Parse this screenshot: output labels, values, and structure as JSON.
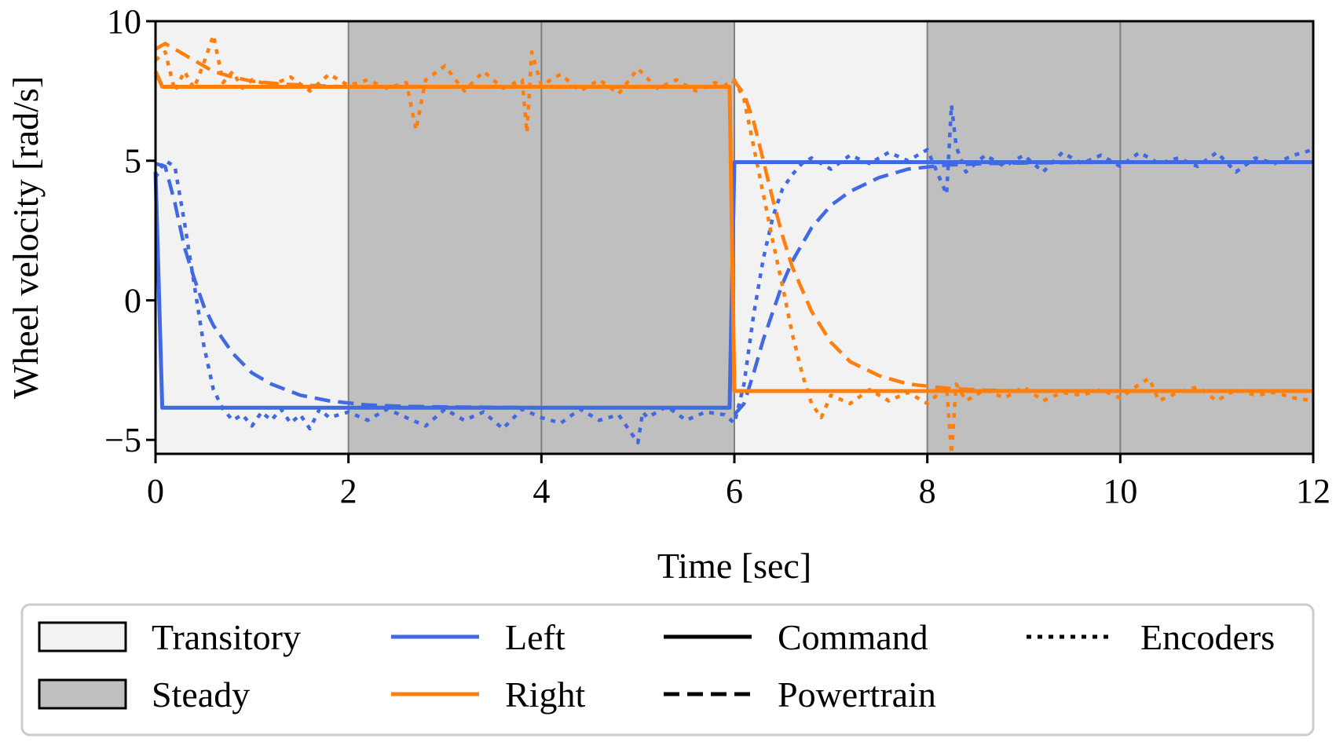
{
  "chart_data": {
    "type": "line",
    "title": "",
    "xlabel": "Time [sec]",
    "ylabel": "Wheel velocity [rad/s]",
    "xlim": [
      0,
      12
    ],
    "ylim": [
      -5.5,
      10
    ],
    "xticks": [
      0,
      2,
      4,
      6,
      8,
      10,
      12
    ],
    "xtick_labels": [
      "0",
      "2",
      "4",
      "6",
      "8",
      "10",
      "12"
    ],
    "yticks": [
      -5,
      0,
      5,
      10
    ],
    "ytick_labels": [
      "−5",
      "0",
      "5",
      "10"
    ],
    "regions": [
      {
        "label": "Transitory",
        "from": 0,
        "to": 2
      },
      {
        "label": "Steady",
        "from": 2,
        "to": 6
      },
      {
        "label": "Transitory",
        "from": 6,
        "to": 8
      },
      {
        "label": "Steady",
        "from": 8,
        "to": 12
      }
    ],
    "region_dividers": [
      2,
      4,
      6,
      8,
      10
    ],
    "series": [
      {
        "name": "Left",
        "source": "Command",
        "x": [
          0,
          0.07,
          5.95,
          6.0,
          12
        ],
        "y": [
          4.6,
          -3.85,
          -3.85,
          4.95,
          4.95
        ]
      },
      {
        "name": "Left",
        "source": "Powertrain",
        "x": [
          0,
          0.1,
          0.2,
          0.3,
          0.4,
          0.5,
          0.6,
          0.8,
          1.0,
          1.2,
          1.5,
          1.8,
          2.2,
          2.6,
          3,
          4,
          5,
          5.95,
          6.0,
          6.1,
          6.2,
          6.3,
          6.4,
          6.5,
          6.6,
          6.8,
          7.0,
          7.2,
          7.5,
          7.8,
          8.2,
          8.6,
          9,
          10,
          11,
          12
        ],
        "y": [
          4.9,
          4.8,
          3.5,
          1.9,
          0.8,
          -0.2,
          -0.9,
          -1.9,
          -2.6,
          -3.0,
          -3.4,
          -3.6,
          -3.75,
          -3.8,
          -3.82,
          -3.85,
          -3.85,
          -3.85,
          -4.1,
          -3.7,
          -2.6,
          -1.4,
          -0.4,
          0.6,
          1.4,
          2.6,
          3.4,
          3.9,
          4.4,
          4.7,
          4.85,
          4.9,
          4.92,
          4.95,
          4.95,
          4.95
        ]
      },
      {
        "name": "Left",
        "source": "Encoders",
        "x": [
          0,
          0.1,
          0.2,
          0.3,
          0.4,
          0.5,
          0.6,
          0.7,
          0.8,
          0.9,
          1.0,
          1.1,
          1.2,
          1.3,
          1.4,
          1.5,
          1.6,
          1.7,
          1.8,
          2.0,
          2.2,
          2.4,
          2.6,
          2.8,
          3.0,
          3.2,
          3.4,
          3.6,
          3.8,
          4.0,
          4.2,
          4.4,
          4.6,
          4.8,
          5.0,
          5.05,
          5.1,
          5.3,
          5.5,
          5.7,
          5.9,
          6.0,
          6.1,
          6.2,
          6.3,
          6.4,
          6.5,
          6.6,
          6.7,
          6.8,
          7.0,
          7.2,
          7.4,
          7.6,
          7.8,
          8.0,
          8.2,
          8.25,
          8.3,
          8.4,
          8.6,
          8.8,
          9.0,
          9.2,
          9.4,
          9.6,
          9.8,
          10.0,
          10.2,
          10.4,
          10.6,
          10.8,
          11.0,
          11.2,
          11.4,
          11.6,
          11.8,
          12.0
        ],
        "y": [
          4.4,
          5.0,
          4.8,
          2.8,
          0.6,
          -1.6,
          -3.2,
          -3.9,
          -4.3,
          -4.1,
          -4.5,
          -4.0,
          -4.3,
          -3.9,
          -4.4,
          -4.1,
          -4.6,
          -3.9,
          -4.2,
          -4.0,
          -4.3,
          -3.9,
          -4.2,
          -4.5,
          -3.9,
          -4.3,
          -4.0,
          -4.6,
          -3.9,
          -4.2,
          -4.4,
          -3.9,
          -4.3,
          -4.1,
          -5.1,
          -4.0,
          -4.2,
          -3.8,
          -4.3,
          -4.0,
          -4.1,
          -4.4,
          -3.0,
          -0.5,
          1.5,
          3.0,
          4.0,
          4.5,
          4.9,
          5.1,
          4.7,
          5.2,
          4.9,
          5.3,
          5.0,
          5.4,
          3.8,
          7.0,
          5.5,
          4.6,
          5.2,
          4.8,
          5.2,
          4.6,
          5.3,
          4.9,
          5.2,
          4.8,
          5.3,
          4.9,
          5.1,
          4.8,
          5.3,
          4.6,
          5.1,
          4.9,
          5.2,
          5.4
        ]
      },
      {
        "name": "Right",
        "source": "Command",
        "x": [
          0,
          0.07,
          5.95,
          6.0,
          12
        ],
        "y": [
          8.2,
          7.65,
          7.65,
          -3.25,
          -3.25
        ]
      },
      {
        "name": "Right",
        "source": "Powertrain",
        "x": [
          0,
          0.1,
          0.2,
          0.4,
          0.6,
          0.8,
          1.0,
          1.3,
          1.6,
          2.0,
          3,
          4,
          5,
          5.95,
          6.0,
          6.1,
          6.2,
          6.3,
          6.4,
          6.5,
          6.6,
          6.8,
          7.0,
          7.2,
          7.5,
          7.8,
          8.2,
          8.6,
          9,
          10,
          11,
          12
        ],
        "y": [
          9.0,
          9.2,
          9.0,
          8.6,
          8.2,
          8.0,
          7.85,
          7.75,
          7.7,
          7.65,
          7.65,
          7.65,
          7.65,
          7.65,
          7.85,
          7.4,
          6.4,
          5.0,
          3.6,
          2.3,
          1.2,
          -0.4,
          -1.5,
          -2.2,
          -2.7,
          -3.0,
          -3.15,
          -3.22,
          -3.25,
          -3.25,
          -3.25,
          -3.25
        ]
      },
      {
        "name": "Right",
        "source": "Encoders",
        "x": [
          0,
          0.1,
          0.2,
          0.3,
          0.4,
          0.5,
          0.6,
          0.7,
          0.8,
          0.9,
          1.0,
          1.2,
          1.4,
          1.6,
          1.8,
          2.0,
          2.2,
          2.4,
          2.6,
          2.7,
          2.8,
          3.0,
          3.2,
          3.4,
          3.6,
          3.8,
          3.85,
          3.9,
          4.0,
          4.2,
          4.4,
          4.6,
          4.8,
          5.0,
          5.2,
          5.4,
          5.6,
          5.8,
          5.9,
          6.0,
          6.1,
          6.2,
          6.3,
          6.4,
          6.5,
          6.6,
          6.7,
          6.8,
          6.9,
          7.0,
          7.2,
          7.4,
          7.6,
          7.8,
          8.0,
          8.2,
          8.25,
          8.3,
          8.4,
          8.6,
          8.8,
          9.0,
          9.2,
          9.4,
          9.6,
          9.8,
          10.0,
          10.2,
          10.3,
          10.4,
          10.6,
          10.8,
          11.0,
          11.2,
          11.4,
          11.6,
          11.8,
          12.0
        ],
        "y": [
          8.6,
          8.9,
          7.5,
          8.2,
          7.6,
          8.5,
          9.5,
          7.8,
          8.2,
          7.6,
          7.9,
          7.7,
          8.0,
          7.5,
          8.1,
          7.7,
          7.9,
          7.6,
          7.8,
          6.1,
          7.9,
          8.4,
          7.5,
          8.2,
          7.6,
          7.9,
          6.0,
          8.9,
          7.7,
          8.1,
          7.5,
          7.9,
          7.4,
          8.3,
          7.6,
          7.9,
          7.5,
          7.8,
          7.7,
          7.9,
          7.2,
          5.5,
          3.8,
          2.1,
          0.5,
          -1.2,
          -2.6,
          -3.7,
          -4.2,
          -3.4,
          -3.7,
          -3.2,
          -3.6,
          -3.3,
          -3.7,
          -3.1,
          -5.5,
          -3.0,
          -3.6,
          -3.2,
          -3.5,
          -3.1,
          -3.6,
          -3.3,
          -3.4,
          -3.2,
          -3.5,
          -3.0,
          -2.8,
          -3.6,
          -3.3,
          -3.1,
          -3.6,
          -3.2,
          -3.4,
          -3.3,
          -3.5,
          -3.6
        ]
      }
    ],
    "legend": {
      "placement": "bottom",
      "regions": [
        {
          "label": "Transitory",
          "fill": "#f2f2f2"
        },
        {
          "label": "Steady",
          "fill": "#bfbfbf"
        }
      ],
      "sides": [
        {
          "label": "Left",
          "color": "#4169e1"
        },
        {
          "label": "Right",
          "color": "#ff7f0e"
        }
      ],
      "sources": [
        {
          "label": "Command",
          "style": "solid"
        },
        {
          "label": "Powertrain",
          "style": "dashed"
        },
        {
          "label": "Encoders",
          "style": "dotted"
        }
      ]
    },
    "colors": {
      "left": "#4169e1",
      "right": "#ff7f0e",
      "transitory": "#f2f2f2",
      "steady": "#bfbfbf",
      "divider": "#808080"
    },
    "grid": false
  }
}
